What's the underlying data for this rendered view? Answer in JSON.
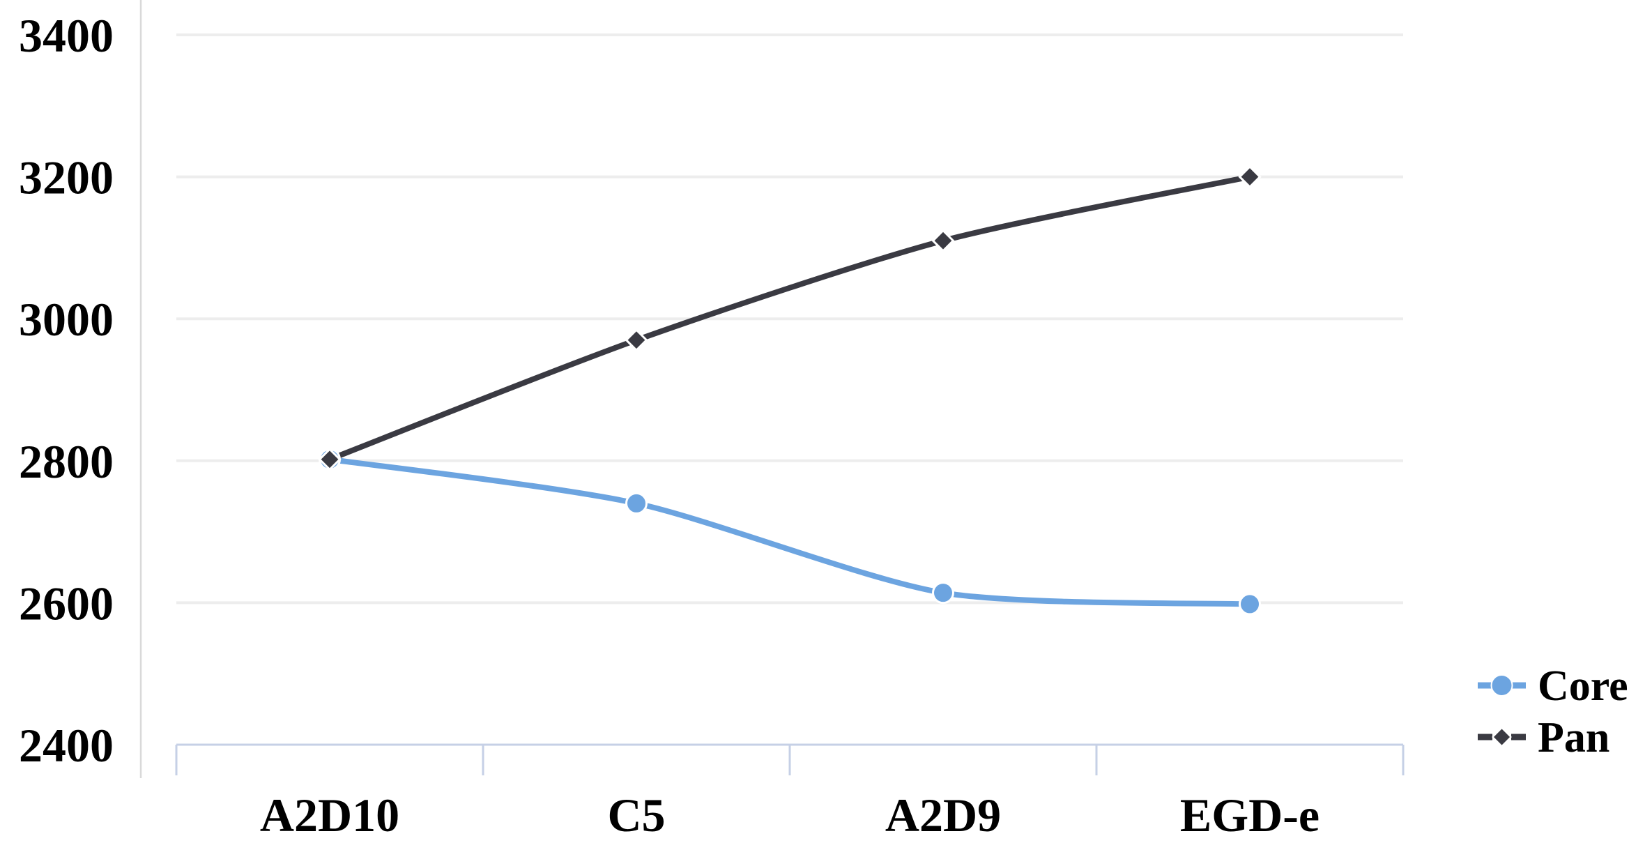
{
  "chart_data": {
    "type": "line",
    "title": "",
    "xlabel": "",
    "ylabel": "",
    "categories": [
      "A2D10",
      "C5",
      "A2D9",
      "EGD-e"
    ],
    "series": [
      {
        "name": "Core",
        "values": [
          2802,
          2740,
          2614,
          2598
        ],
        "color": "#6CA4E0",
        "marker": "circle"
      },
      {
        "name": "Pan",
        "values": [
          2802,
          2970,
          3110,
          3200
        ],
        "color": "#3A3A42",
        "marker": "diamond"
      }
    ],
    "ylim": [
      2400,
      3400
    ],
    "yticks": [
      2400,
      2600,
      2800,
      3000,
      3200,
      3400
    ],
    "grid": true,
    "legend_position": "bottom-right",
    "legend": [
      {
        "label": "Core",
        "marker": "circle-icon",
        "color": "#6CA4E0"
      },
      {
        "label": "Pan",
        "marker": "diamond-icon",
        "color": "#3A3A42"
      }
    ]
  },
  "colors": {
    "gridline": "#EDEDED",
    "y_axis_line": "#D9D9D9",
    "category_axis": "#C6D0E6",
    "text": "#000000",
    "background": "#FFFFFF"
  }
}
